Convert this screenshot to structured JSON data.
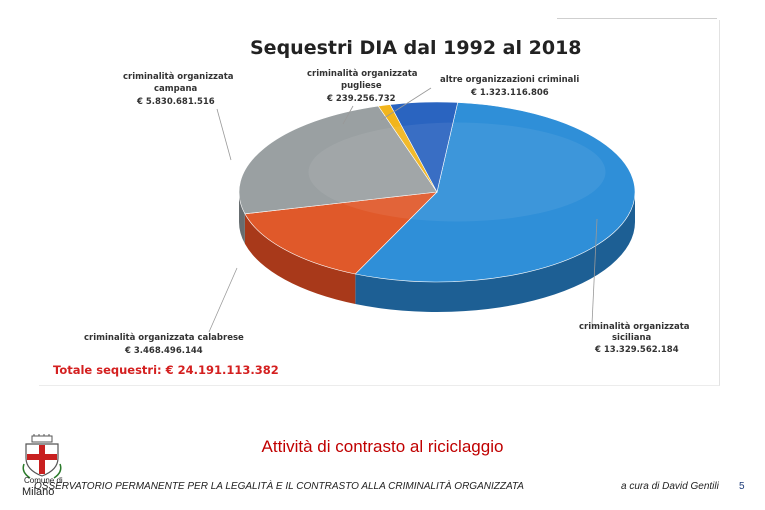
{
  "chart_data": {
    "type": "pie",
    "title": "Sequestri DIA dal 1992 al 2018",
    "total_label": "Totale sequestri: € 24.191.113.382",
    "slices": [
      {
        "name": "criminalità organizzata siciliana",
        "line1": "criminalità organizzata",
        "line2": "siciliana",
        "amount": "€ 13.329.562.184",
        "value": 13329562184,
        "color": "#2f8fd8",
        "dark": "#1d5f94"
      },
      {
        "name": "criminalità organizzata calabrese",
        "line1": "criminalità organizzata calabrese",
        "line2": "",
        "amount": "€ 3.468.496.144",
        "value": 3468496144,
        "color": "#e0592a",
        "dark": "#a8391a"
      },
      {
        "name": "criminalità organizzata campana",
        "line1": "criminalità organizzata",
        "line2": "campana",
        "amount": "€ 5.830.681.516",
        "value": 5830681516,
        "color": "#9aa0a2",
        "dark": "#676d70"
      },
      {
        "name": "criminalità organizzata pugliese",
        "line1": "criminalità organizzata",
        "line2": "pugliese",
        "amount": "€ 239.256.732",
        "value": 239256732,
        "color": "#f2b51c",
        "dark": "#b28212"
      },
      {
        "name": "altre organizzazioni criminali",
        "line1": "altre organizzazioni criminali",
        "line2": "",
        "amount": "€ 1.323.116.806",
        "value": 1323116806,
        "color": "#2a64c0",
        "dark": "#1b4388"
      }
    ]
  },
  "slide": {
    "title": "Attività di contrasto al riciclaggio",
    "observatory": "OSSERVATORIO PERMANENTE PER LA LEGALITÀ E IL CONTRASTO ALLA CRIMINALITÀ ORGANIZZATA",
    "author": "a cura di David Gentili",
    "page": "5",
    "logo_line1": "Comune di",
    "logo_line2": "Milano"
  },
  "colors": {
    "accent": "#c00000",
    "total": "#d42020"
  }
}
